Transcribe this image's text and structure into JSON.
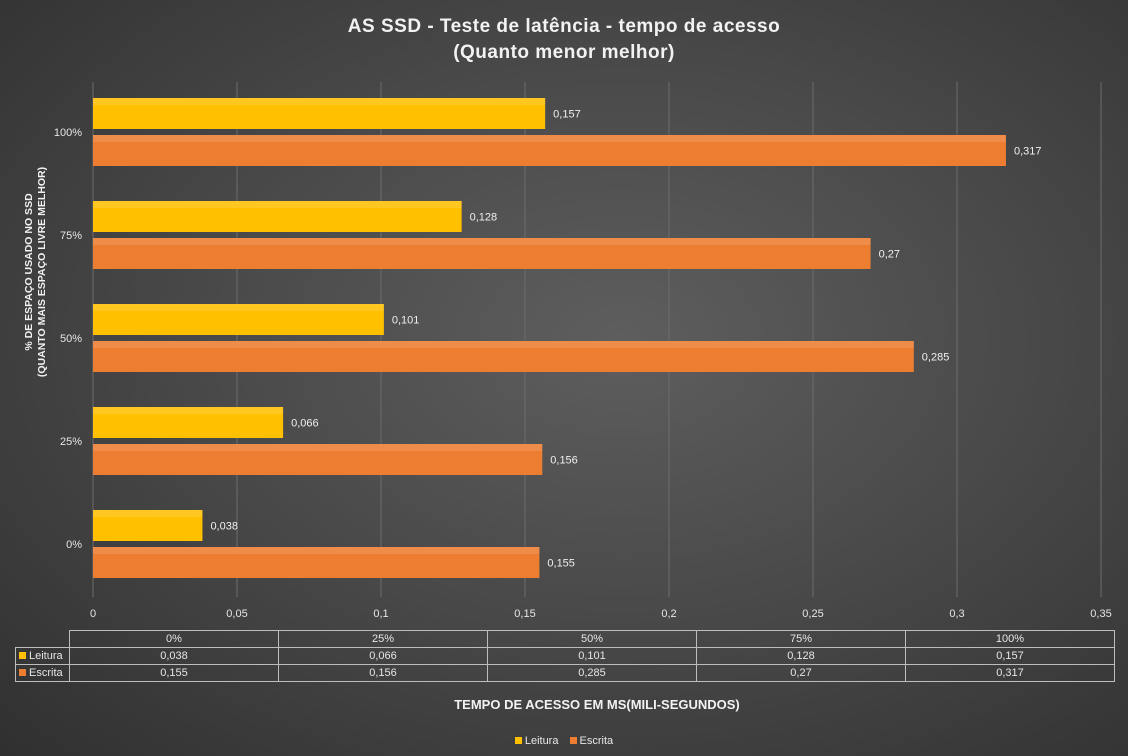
{
  "chart_data": {
    "type": "bar",
    "orientation": "horizontal",
    "title": "AS SSD - Teste de latência - tempo de acesso",
    "subtitle": "(Quanto menor melhor)",
    "ylabel_line1": "% DE ESPAÇO USADO NO SSD",
    "ylabel_line2": "(QUANTO MAIS ESPAÇO LIVRE MELHOR)",
    "xlabel": "TEMPO DE ACESSO EM MS(MILI-SEGUNDOS)",
    "categories": [
      "0%",
      "25%",
      "50%",
      "75%",
      "100%"
    ],
    "x_ticks": [
      "0",
      "0,05",
      "0,1",
      "0,15",
      "0,2",
      "0,25",
      "0,3",
      "0,35"
    ],
    "xlim": [
      0,
      0.35
    ],
    "grid": "vertical",
    "legend_position": "bottom",
    "series": [
      {
        "name": "Leitura",
        "values": [
          0.038,
          0.066,
          0.101,
          0.128,
          0.157
        ],
        "labels": [
          "0,038",
          "0,066",
          "0,101",
          "0,128",
          "0,157"
        ],
        "color": "#FFC000"
      },
      {
        "name": "Escrita",
        "values": [
          0.155,
          0.156,
          0.285,
          0.27,
          0.317
        ],
        "labels": [
          "0,155",
          "0,156",
          "0,285",
          "0,27",
          "0,317"
        ],
        "color": "#ED7D31"
      }
    ]
  }
}
